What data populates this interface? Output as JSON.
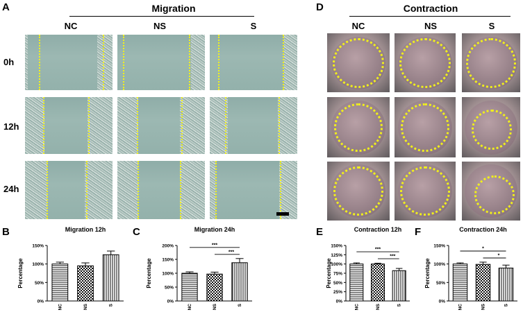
{
  "panels": {
    "A": "A",
    "B": "B",
    "C": "C",
    "D": "D",
    "E": "E",
    "F": "F"
  },
  "migration": {
    "title": "Migration",
    "columns": [
      "NC",
      "NS",
      "S"
    ],
    "rows": [
      "0h",
      "12h",
      "24h"
    ]
  },
  "contraction": {
    "title": "Contraction",
    "columns": [
      "NC",
      "NS",
      "S"
    ]
  },
  "chart_data": [
    {
      "id": "B",
      "type": "bar",
      "title": "Migration 12h",
      "ylabel": "Percentage",
      "categories": [
        "NC",
        "NS",
        "S"
      ],
      "values": [
        100,
        95,
        125
      ],
      "errors": [
        5,
        8,
        10
      ],
      "ylim": [
        0,
        150
      ],
      "yticks": [
        "0%",
        "50%",
        "100%",
        "150%"
      ],
      "ytick_values": [
        0,
        50,
        100,
        150
      ],
      "significance": []
    },
    {
      "id": "C",
      "type": "bar",
      "title": "Migration 24h",
      "ylabel": "Percentage",
      "categories": [
        "NC",
        "NS",
        "S"
      ],
      "values": [
        100,
        97,
        138
      ],
      "errors": [
        5,
        7,
        15
      ],
      "ylim": [
        0,
        200
      ],
      "yticks": [
        "0%",
        "50%",
        "100%",
        "150%",
        "200%"
      ],
      "ytick_values": [
        0,
        50,
        100,
        150,
        200
      ],
      "significance": [
        {
          "from": 0,
          "to": 2,
          "label": "***"
        },
        {
          "from": 1,
          "to": 2,
          "label": "***"
        }
      ]
    },
    {
      "id": "E",
      "type": "bar",
      "title": "Contraction 12h",
      "ylabel": "Percentage",
      "categories": [
        "NC",
        "NS",
        "S"
      ],
      "values": [
        100,
        100,
        82
      ],
      "errors": [
        3,
        2,
        6
      ],
      "ylim": [
        0,
        150
      ],
      "yticks": [
        "0%",
        "25%",
        "50%",
        "75%",
        "100%",
        "125%",
        "150%"
      ],
      "ytick_values": [
        0,
        25,
        50,
        75,
        100,
        125,
        150
      ],
      "significance": [
        {
          "from": 0,
          "to": 2,
          "label": "***"
        },
        {
          "from": 1,
          "to": 2,
          "label": "***"
        }
      ]
    },
    {
      "id": "F",
      "type": "bar",
      "title": "Contraction 24h",
      "ylabel": "Percentage",
      "categories": [
        "NC",
        "NS",
        "S"
      ],
      "values": [
        100,
        99,
        89
      ],
      "errors": [
        3,
        6,
        8
      ],
      "ylim": [
        0,
        150
      ],
      "yticks": [
        "0%",
        "50%",
        "100%",
        "150%"
      ],
      "ytick_values": [
        0,
        50,
        100,
        150
      ],
      "significance": [
        {
          "from": 0,
          "to": 2,
          "label": "*"
        },
        {
          "from": 1,
          "to": 2,
          "label": "*"
        }
      ]
    }
  ]
}
